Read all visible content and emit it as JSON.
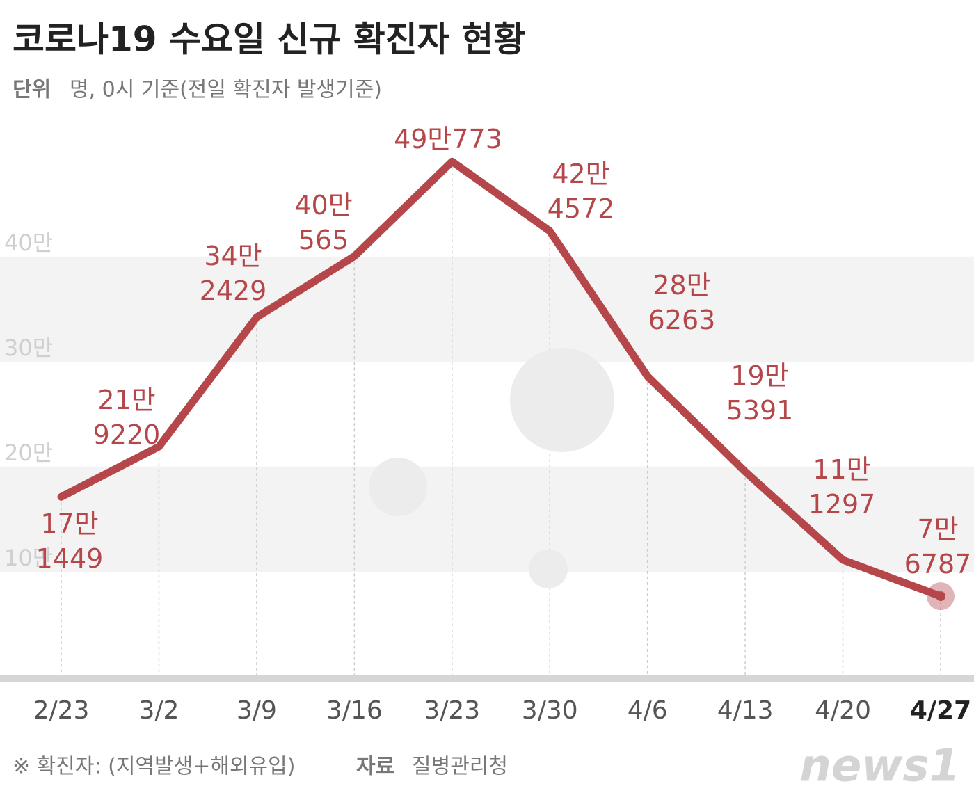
{
  "chart_data": {
    "type": "line",
    "title": "코로나19 수요일 신규 확진자 현황",
    "unit_label": "단위",
    "subtitle": "명, 0시 기준(전일 확진자 발생기준)",
    "categories": [
      "2/23",
      "3/2",
      "3/9",
      "3/16",
      "3/23",
      "3/30",
      "4/6",
      "4/13",
      "4/20",
      "4/27"
    ],
    "values": [
      171449,
      219220,
      342429,
      400565,
      490773,
      424572,
      286263,
      195391,
      111297,
      76787
    ],
    "value_labels": [
      "17만\n1449",
      "21만\n9220",
      "34만\n2429",
      "40만\n565",
      "49만773",
      "42만\n4572",
      "28만\n6263",
      "19만\n5391",
      "11만\n1297",
      "7만\n6787"
    ],
    "color": "#b5474b",
    "ylim": [
      0,
      530000
    ],
    "yticks": [
      {
        "value": 100000,
        "label": "10만"
      },
      {
        "value": 200000,
        "label": "20만"
      },
      {
        "value": 300000,
        "label": "30만"
      },
      {
        "value": 400000,
        "label": "40만"
      }
    ],
    "grid": true,
    "note": "※ 확진자: (지역발생+해외유입)",
    "source_label": "자료",
    "source": "질병관리청",
    "logo": "news1"
  }
}
